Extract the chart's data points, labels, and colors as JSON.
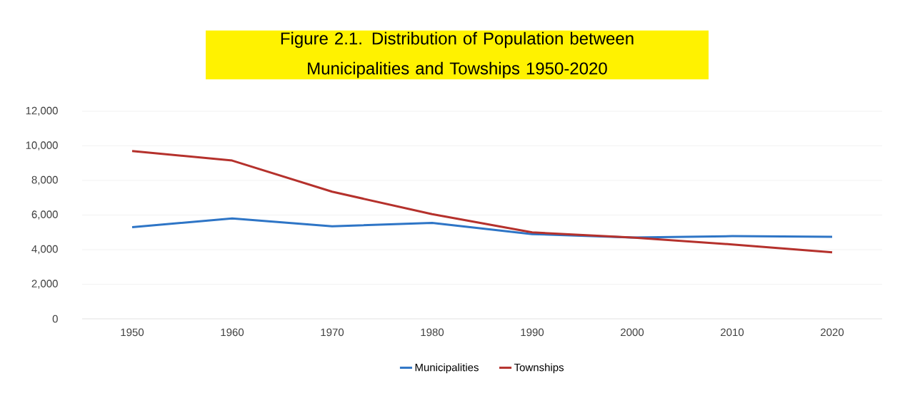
{
  "chart_data": {
    "type": "line",
    "title": "Figure 2.1.  Distribution of Population between  Municipalities and Towships 1950-2020",
    "categories": [
      "1950",
      "1960",
      "1970",
      "1980",
      "1990",
      "2000",
      "2010",
      "2020"
    ],
    "series": [
      {
        "name": "Municipalities",
        "color": "#2e75c6",
        "values": [
          5300,
          5800,
          5350,
          5550,
          4900,
          4700,
          4780,
          4740
        ]
      },
      {
        "name": "Townships",
        "color": "#b5312c",
        "values": [
          9700,
          9150,
          7350,
          6050,
          5000,
          4700,
          4300,
          3850
        ]
      }
    ],
    "ylim": [
      0,
      12000
    ],
    "yticks": [
      0,
      {
        "value": 2000,
        "label": "2,000"
      },
      {
        "value": 4000,
        "label": "4,000"
      },
      {
        "value": 6000,
        "label": "6,000"
      },
      {
        "value": 8000,
        "label": "8,000"
      },
      {
        "value": 10000,
        "label": "10,000"
      },
      {
        "value": 12000,
        "label": "12,000"
      }
    ],
    "grid": "y",
    "legend": "bottom",
    "marker": "none",
    "line_style": "solid"
  }
}
